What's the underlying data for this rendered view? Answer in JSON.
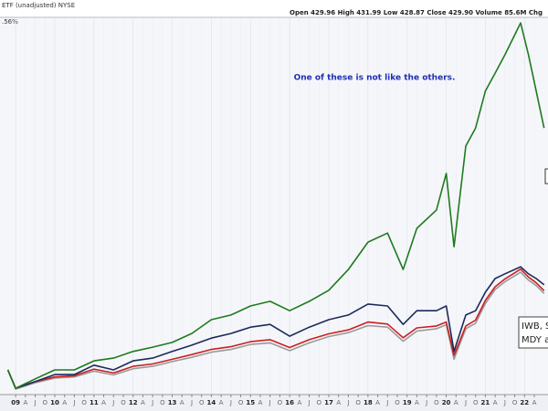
{
  "chart_data": {
    "type": "line",
    "source": "ETF (unadjusted) NYSE",
    "quote": "Open 429.96 High 431.99 Low 428.87 Close 429.90 Volume 85.6M Chg",
    "corner_label": ".56%",
    "annotation": "One of these is not like the others.",
    "legend_lines": [
      "IWB, S",
      "MDY a"
    ],
    "x": [
      2008.8,
      2009,
      2009.5,
      2010,
      2010.5,
      2011,
      2011.5,
      2012,
      2012.5,
      2013,
      2013.5,
      2014,
      2014.5,
      2015,
      2015.5,
      2016,
      2016.5,
      2017,
      2017.5,
      2018,
      2018.5,
      2018.9,
      2019.25,
      2019.75,
      2020,
      2020.2,
      2020.5,
      2020.75,
      2021,
      2021.25,
      2021.5,
      2021.9,
      2022.1,
      2022.3,
      2022.5
    ],
    "series": [
      {
        "color": "#9a9a9a",
        "values": [
          3,
          -46,
          -30,
          -18,
          -15,
          0,
          -10,
          6,
          12,
          24,
          35,
          48,
          55,
          68,
          72,
          52,
          72,
          88,
          98,
          116,
          112,
          76,
          102,
          108,
          118,
          30,
          108,
          122,
          172,
          208,
          228,
          252,
          232,
          218,
          198
        ]
      },
      {
        "color": "#cc1f1f",
        "values": [
          3,
          -44,
          -27,
          -15,
          -12,
          5,
          -5,
          12,
          18,
          30,
          42,
          55,
          62,
          75,
          80,
          60,
          80,
          95,
          105,
          125,
          120,
          85,
          110,
          115,
          125,
          40,
          115,
          130,
          180,
          215,
          235,
          260,
          240,
          225,
          205
        ]
      },
      {
        "color": "#1c2b5a",
        "values": [
          3,
          -44,
          -27,
          -9,
          -9,
          15,
          3,
          26,
          33,
          50,
          66,
          84,
          96,
          112,
          119,
          89,
          112,
          131,
          143,
          171,
          166,
          119,
          154,
          154,
          166,
          50,
          143,
          154,
          201,
          236,
          248,
          266,
          248,
          236,
          220
        ]
      },
      {
        "color": "#1e7a1e",
        "values": [
          3,
          -44,
          -20,
          3,
          3,
          26,
          33,
          50,
          61,
          73,
          96,
          131,
          143,
          166,
          178,
          154,
          178,
          206,
          259,
          329,
          352,
          259,
          364,
          411,
          504,
          317,
          574,
          620,
          714,
          760,
          807,
          888,
          807,
          714,
          620
        ]
      }
    ],
    "xlim": [
      2008.6,
      2022.6
    ],
    "ylim": [
      -60,
      900
    ],
    "grid": true,
    "xticks": [
      {
        "value": 2009,
        "label": "09"
      },
      {
        "value": 2009.25,
        "label": "A"
      },
      {
        "value": 2009.5,
        "label": "J"
      },
      {
        "value": 2009.75,
        "label": "O"
      },
      {
        "value": 2010,
        "label": "10"
      },
      {
        "value": 2010.25,
        "label": "A"
      },
      {
        "value": 2010.5,
        "label": "J"
      },
      {
        "value": 2010.75,
        "label": "O"
      },
      {
        "value": 2011,
        "label": "11"
      },
      {
        "value": 2011.25,
        "label": "A"
      },
      {
        "value": 2011.5,
        "label": "J"
      },
      {
        "value": 2011.75,
        "label": "O"
      },
      {
        "value": 2012,
        "label": "12"
      },
      {
        "value": 2012.25,
        "label": "A"
      },
      {
        "value": 2012.5,
        "label": "J"
      },
      {
        "value": 2012.75,
        "label": "O"
      },
      {
        "value": 2013,
        "label": "13"
      },
      {
        "value": 2013.25,
        "label": "A"
      },
      {
        "value": 2013.5,
        "label": "J"
      },
      {
        "value": 2013.75,
        "label": "O"
      },
      {
        "value": 2014,
        "label": "14"
      },
      {
        "value": 2014.25,
        "label": "A"
      },
      {
        "value": 2014.5,
        "label": "J"
      },
      {
        "value": 2014.75,
        "label": "O"
      },
      {
        "value": 2015,
        "label": "15"
      },
      {
        "value": 2015.25,
        "label": "A"
      },
      {
        "value": 2015.5,
        "label": "J"
      },
      {
        "value": 2015.75,
        "label": "O"
      },
      {
        "value": 2016,
        "label": "16"
      },
      {
        "value": 2016.25,
        "label": "A"
      },
      {
        "value": 2016.5,
        "label": "J"
      },
      {
        "value": 2016.75,
        "label": "O"
      },
      {
        "value": 2017,
        "label": "17"
      },
      {
        "value": 2017.25,
        "label": "A"
      },
      {
        "value": 2017.5,
        "label": "J"
      },
      {
        "value": 2017.75,
        "label": "O"
      },
      {
        "value": 2018,
        "label": "18"
      },
      {
        "value": 2018.25,
        "label": "A"
      },
      {
        "value": 2018.5,
        "label": "J"
      },
      {
        "value": 2018.75,
        "label": "O"
      },
      {
        "value": 2019,
        "label": "19"
      },
      {
        "value": 2019.25,
        "label": "A"
      },
      {
        "value": 2019.5,
        "label": "J"
      },
      {
        "value": 2019.75,
        "label": "O"
      },
      {
        "value": 2020,
        "label": "20"
      },
      {
        "value": 2020.25,
        "label": "A"
      },
      {
        "value": 2020.5,
        "label": "J"
      },
      {
        "value": 2020.75,
        "label": "O"
      },
      {
        "value": 2021,
        "label": "21"
      },
      {
        "value": 2021.25,
        "label": "A"
      },
      {
        "value": 2021.5,
        "label": "J"
      },
      {
        "value": 2021.75,
        "label": "O"
      },
      {
        "value": 2022,
        "label": "22"
      },
      {
        "value": 2022.25,
        "label": "A"
      }
    ]
  }
}
